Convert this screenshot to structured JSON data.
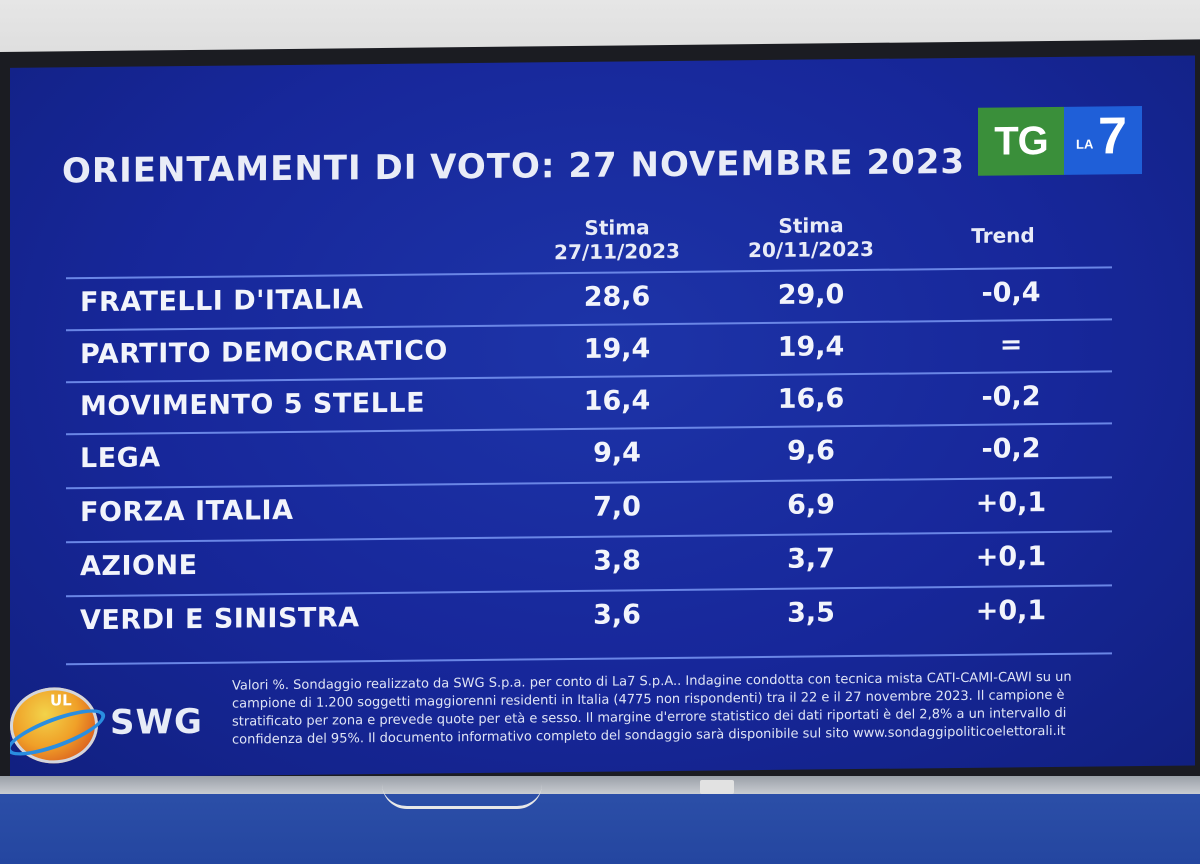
{
  "title": "ORIENTAMENTI DI VOTO: 27 NOVEMBRE 2023",
  "logo": {
    "tg": "TG",
    "la": "LA",
    "seven": "7"
  },
  "columns": {
    "col1": {
      "label": "Stima",
      "date": "27/11/2023"
    },
    "col2": {
      "label": "Stima",
      "date": "20/11/2023"
    },
    "col3": {
      "label": "Trend"
    }
  },
  "rows": [
    {
      "party": "FRATELLI D'ITALIA",
      "v1": "28,6",
      "v2": "29,0",
      "trend": "-0,4"
    },
    {
      "party": "PARTITO DEMOCRATICO",
      "v1": "19,4",
      "v2": "19,4",
      "trend": "="
    },
    {
      "party": "MOVIMENTO 5 STELLE",
      "v1": "16,4",
      "v2": "16,6",
      "trend": "-0,2"
    },
    {
      "party": "LEGA",
      "v1": "9,4",
      "v2": "9,6",
      "trend": "-0,2"
    },
    {
      "party": "FORZA ITALIA",
      "v1": "7,0",
      "v2": "6,9",
      "trend": "+0,1"
    },
    {
      "party": "AZIONE",
      "v1": "3,8",
      "v2": "3,7",
      "trend": "+0,1"
    },
    {
      "party": "VERDI E SINISTRA",
      "v1": "3,6",
      "v2": "3,5",
      "trend": "+0,1"
    }
  ],
  "source": {
    "brand": "SWG",
    "logo_text": "UL",
    "note": "Valori %. Sondaggio realizzato da SWG S.p.a. per conto di La7 S.p.A.. Indagine condotta con tecnica mista CATI-CAMI-CAWI su un campione di 1.200 soggetti maggiorenni residenti in Italia (4775 non rispondenti) tra il 22 e il 27 novembre 2023. Il campione è stratificato per zona e prevede quote per età e sesso. Il margine d'errore statistico dei dati riportati è del 2,8% a un intervallo di confidenza del 95%. Il documento informativo completo del sondaggio sarà disponibile sul sito www.sondaggipoliticoelettorali.it"
  },
  "colors": {
    "screen": "#17279a",
    "rule": "#6a86e6",
    "tg_green": "#3a8f3a",
    "la7_blue": "#1f5fd8"
  }
}
